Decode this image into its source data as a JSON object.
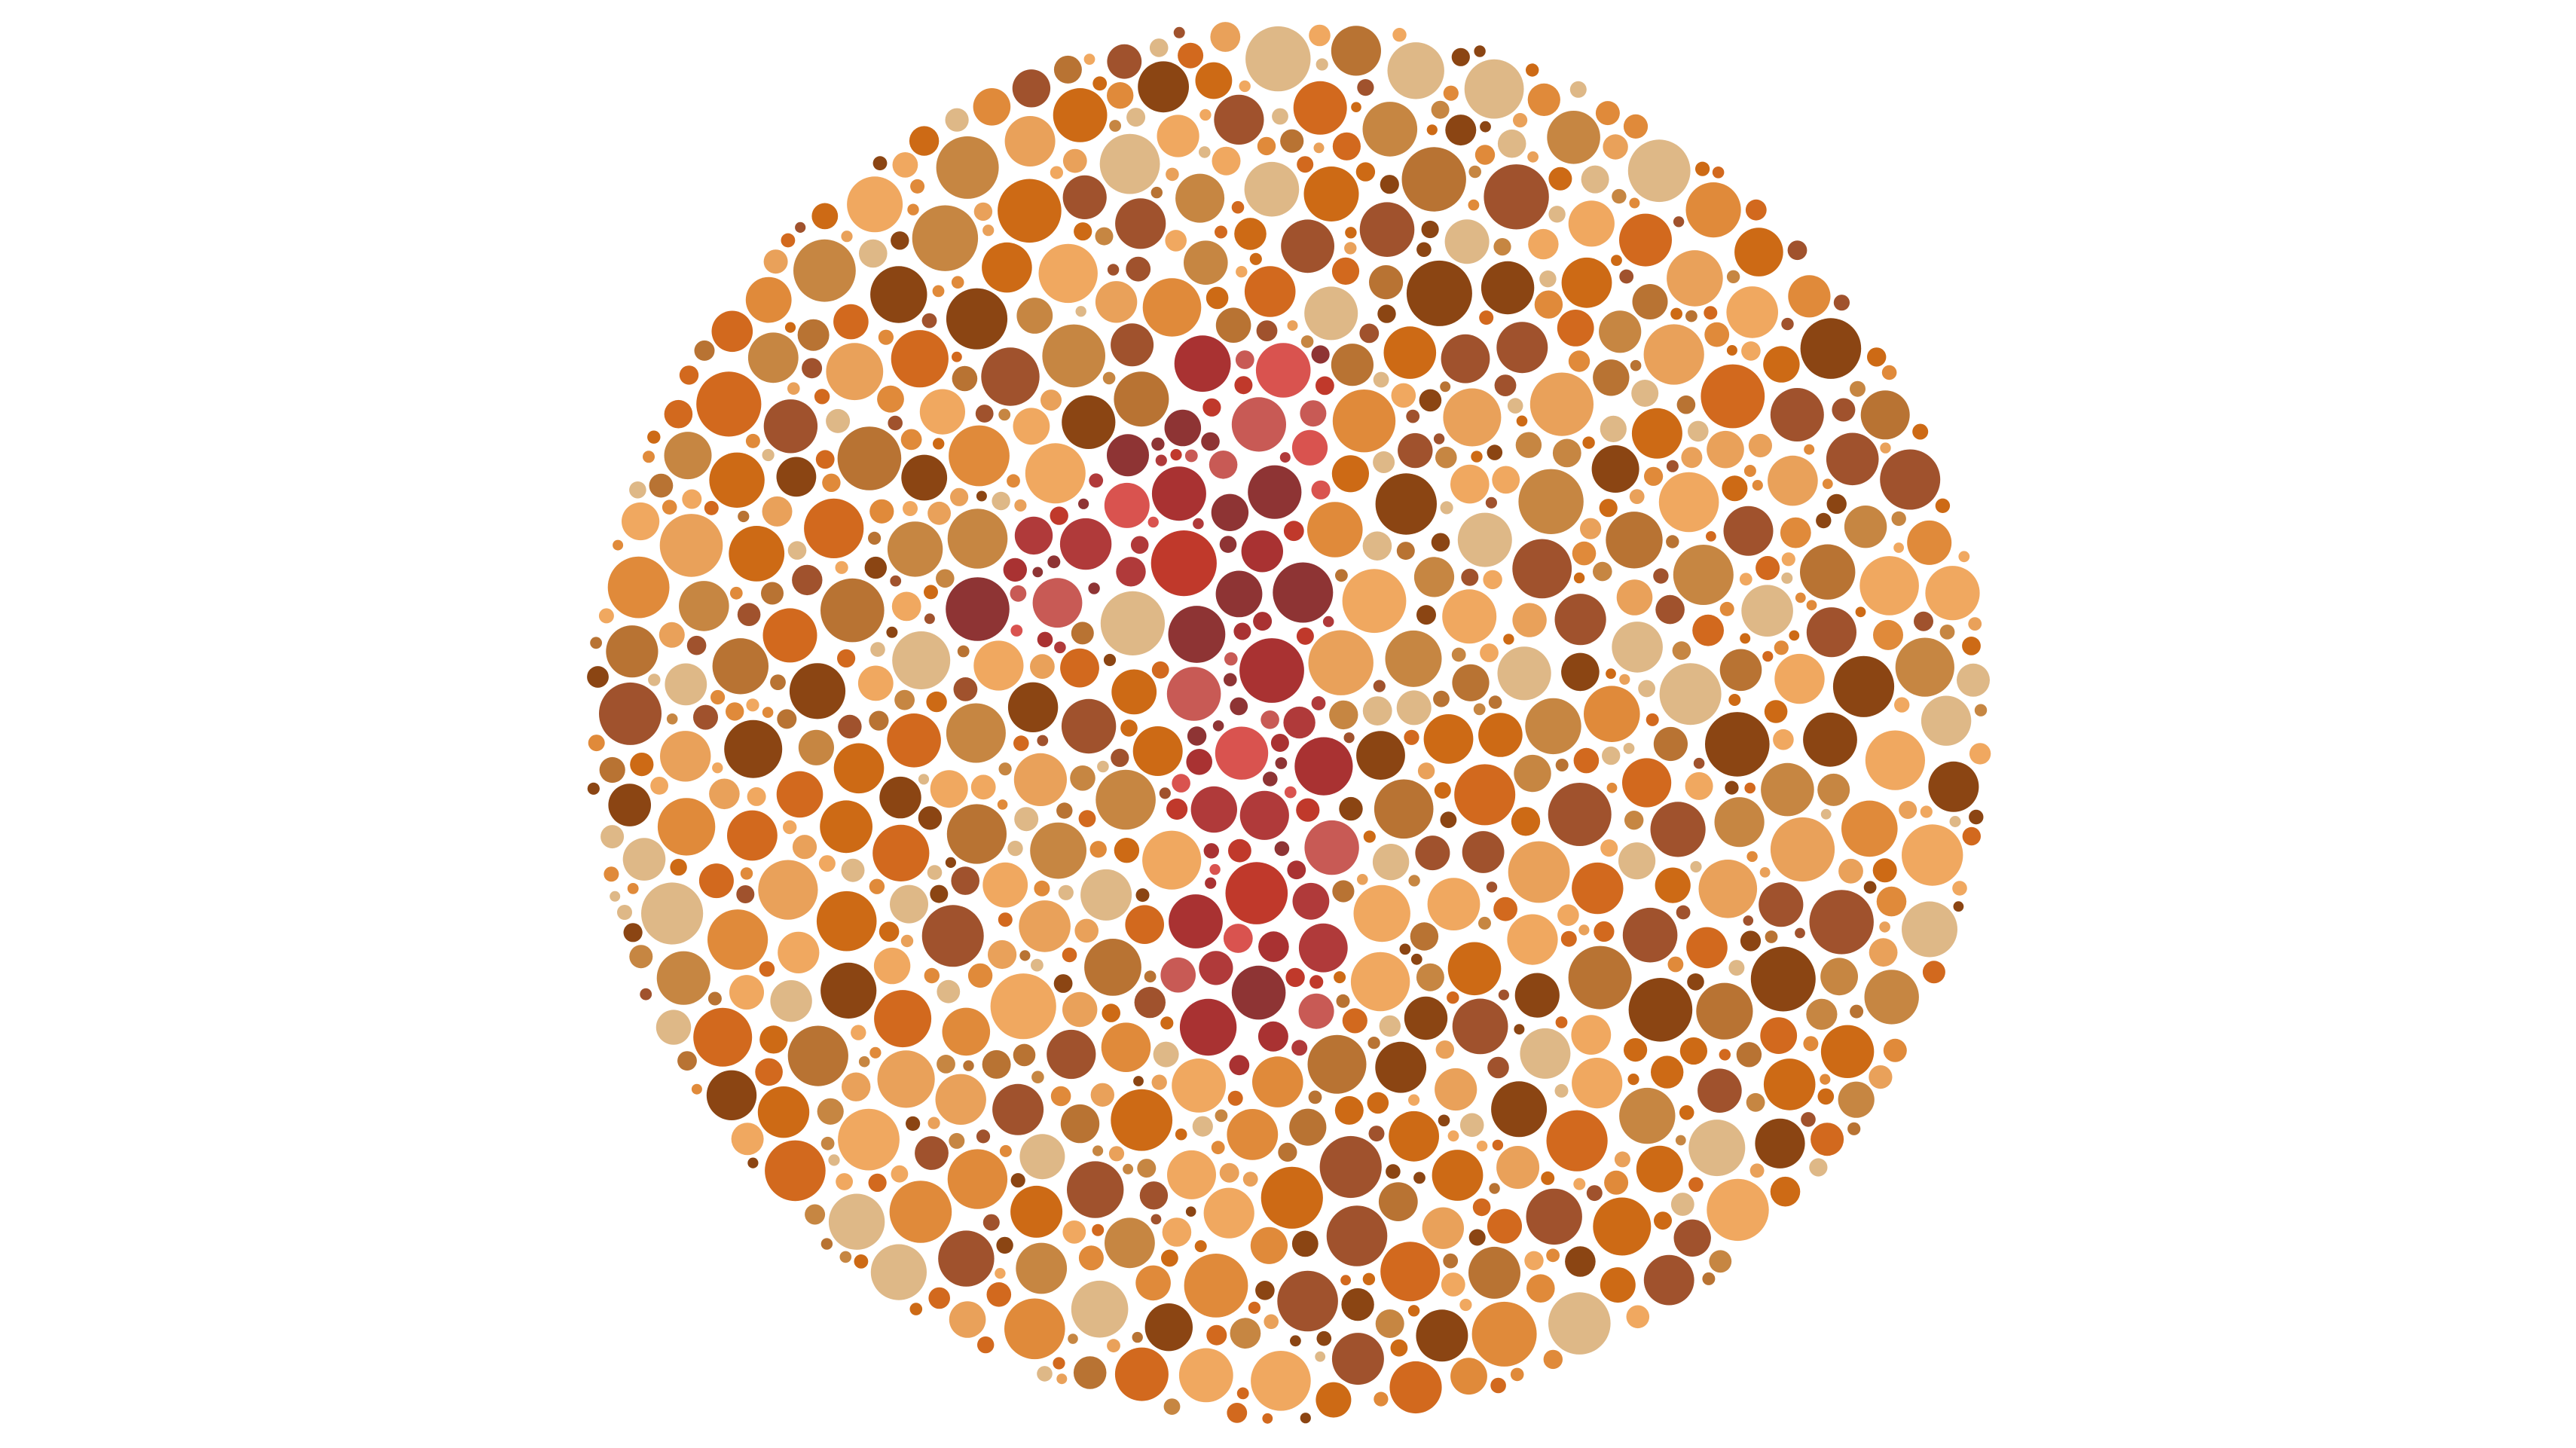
{
  "plate": {
    "type": "ishihara-color-test-plate",
    "hidden_numeral": "1",
    "background_color": "#ffffff",
    "palette": {
      "figure": [
        "#C0392B",
        "#D9534F",
        "#A93232",
        "#8E3434",
        "#C85A55",
        "#B03A3A"
      ],
      "ground": [
        "#8B4513",
        "#A0522D",
        "#CD6A15",
        "#E08A3A",
        "#F0A860",
        "#DEB887",
        "#C68642",
        "#B87333",
        "#D2691E",
        "#E9A15A"
      ]
    }
  }
}
